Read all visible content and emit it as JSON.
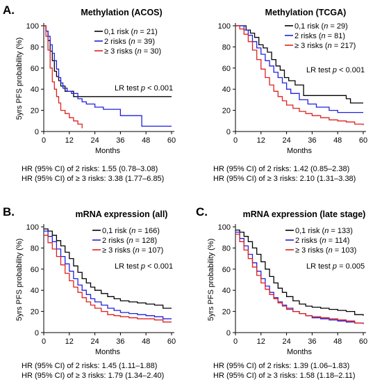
{
  "colors": {
    "low": "#000000",
    "mid": "#1f1fe0",
    "high": "#e01f1f",
    "axis": "#000000"
  },
  "chart_data": [
    {
      "type": "line",
      "panel": "A.",
      "title": "Methylation (ACOS)",
      "xlabel": "Months",
      "ylabel": "5yrs PFS probability (%)",
      "xlim": [
        0,
        60
      ],
      "ylim": [
        0,
        100
      ],
      "xticks": [
        0,
        12,
        24,
        36,
        48,
        60
      ],
      "yticks": [
        0,
        20,
        40,
        60,
        80,
        100
      ],
      "legend_position": "top-right",
      "legend": [
        {
          "label": "0,1 risk",
          "n": "21"
        },
        {
          "label": "2  risks",
          "n": "39"
        },
        {
          "label": "≥ 3 risks",
          "n": "30"
        }
      ],
      "lr_label": "LR test",
      "lr_p": "< 0.001",
      "hr_lines": [
        {
          "prefix": "HR (95% CI) of",
          "group": "2  risks",
          "value": "1.55 (0.78–3.08)"
        },
        {
          "prefix": "HR (95% CI) of",
          "group": "≥ 3 risks",
          "value": "3.38 (1.77–6.85)"
        }
      ],
      "series": [
        {
          "x": [
            0,
            1,
            2,
            3,
            4,
            5,
            6,
            7,
            8,
            10,
            12,
            14,
            16,
            60
          ],
          "y": [
            100,
            95,
            86,
            76,
            67,
            57,
            52,
            48,
            43,
            38,
            38,
            33,
            33,
            33
          ]
        },
        {
          "x": [
            0,
            1,
            2,
            3,
            4,
            5,
            6,
            7,
            8,
            9,
            11,
            13,
            16,
            18,
            20,
            24,
            28,
            36,
            44,
            46,
            60
          ],
          "y": [
            100,
            95,
            90,
            82,
            74,
            67,
            59,
            51,
            46,
            41,
            38,
            36,
            31,
            28,
            26,
            23,
            21,
            15,
            15,
            5,
            5
          ]
        },
        {
          "x": [
            0,
            1,
            2,
            3,
            4,
            5,
            6,
            7,
            8,
            10,
            12,
            14,
            16,
            18
          ],
          "y": [
            100,
            90,
            77,
            60,
            47,
            40,
            33,
            27,
            20,
            17,
            13,
            10,
            7,
            3
          ]
        }
      ]
    },
    {
      "type": "line",
      "panel": "",
      "title": "Methylation (TCGA)",
      "xlabel": "Months",
      "ylabel": "",
      "xlim": [
        0,
        60
      ],
      "ylim": [
        0,
        100
      ],
      "xticks": [
        0,
        12,
        24,
        36,
        48,
        60
      ],
      "yticks": [
        0,
        20,
        40,
        60,
        80,
        100
      ],
      "legend_position": "top-right",
      "legend": [
        {
          "label": "0,1 risk",
          "n": "29"
        },
        {
          "label": "2  risks",
          "n": "81"
        },
        {
          "label": "≥ 3 risks",
          "n": "217"
        }
      ],
      "lr_label": "LR test",
      "lr_p": "< 0.001",
      "hr_lines": [
        {
          "prefix": "HR (95% CI) of",
          "group": "2  risks",
          "value": "1.42 (0.85–2.38)"
        },
        {
          "prefix": "HR (95% CI) of",
          "group": "≥ 3 risks",
          "value": "2.10 (1.31–3.38)"
        }
      ],
      "series": [
        {
          "x": [
            0,
            5,
            7,
            9,
            11,
            13,
            15,
            17,
            19,
            21,
            23,
            25,
            28,
            32,
            40,
            52,
            54,
            60
          ],
          "y": [
            100,
            96,
            93,
            89,
            82,
            79,
            75,
            68,
            62,
            58,
            51,
            48,
            44,
            34,
            34,
            31,
            27,
            27
          ]
        },
        {
          "x": [
            0,
            4,
            6,
            8,
            10,
            12,
            14,
            16,
            18,
            20,
            22,
            24,
            26,
            30,
            34,
            38,
            44,
            48,
            60
          ],
          "y": [
            100,
            96,
            91,
            85,
            79,
            73,
            67,
            62,
            56,
            51,
            46,
            40,
            36,
            30,
            26,
            23,
            20,
            18,
            18
          ]
        },
        {
          "x": [
            0,
            2,
            4,
            6,
            8,
            10,
            12,
            14,
            16,
            18,
            20,
            22,
            24,
            27,
            30,
            33,
            36,
            40,
            44,
            48,
            52,
            56,
            60
          ],
          "y": [
            100,
            97,
            92,
            85,
            77,
            68,
            59,
            51,
            44,
            38,
            33,
            29,
            25,
            22,
            19,
            17,
            15,
            13,
            11,
            10,
            9,
            7,
            6
          ]
        }
      ]
    },
    {
      "type": "line",
      "panel": "B.",
      "title": "mRNA expression (all)",
      "xlabel": "Months",
      "ylabel": "5yrs PFS probability (%)",
      "xlim": [
        0,
        60
      ],
      "ylim": [
        0,
        100
      ],
      "xticks": [
        0,
        12,
        24,
        36,
        48,
        60
      ],
      "yticks": [
        0,
        20,
        40,
        60,
        80,
        100
      ],
      "legend_position": "top-right",
      "legend": [
        {
          "label": "0,1 risk",
          "n": "166"
        },
        {
          "label": "2  risks",
          "n": "128"
        },
        {
          "label": "≥ 3 risks",
          "n": "107"
        }
      ],
      "lr_label": "LR test",
      "lr_p": "< 0.001",
      "hr_lines": [
        {
          "prefix": "HR (95% CI) of",
          "group": "2  risks",
          "value": "1.45 (1.11–1.88)"
        },
        {
          "prefix": "HR (95% CI) of",
          "group": "≥ 3 risks",
          "value": "1.79 (1.34–2.40)"
        }
      ],
      "series": [
        {
          "x": [
            0,
            2,
            4,
            6,
            8,
            10,
            12,
            14,
            16,
            18,
            20,
            22,
            24,
            27,
            30,
            33,
            36,
            40,
            44,
            48,
            52,
            56,
            60
          ],
          "y": [
            98,
            96,
            92,
            87,
            82,
            76,
            70,
            63,
            57,
            51,
            47,
            43,
            40,
            37,
            34,
            32,
            30,
            29,
            28,
            27,
            26,
            23,
            23
          ]
        },
        {
          "x": [
            0,
            2,
            4,
            6,
            8,
            10,
            12,
            14,
            16,
            18,
            20,
            22,
            24,
            27,
            30,
            33,
            36,
            40,
            44,
            48,
            52,
            56,
            60
          ],
          "y": [
            96,
            91,
            86,
            79,
            72,
            65,
            58,
            51,
            45,
            40,
            36,
            32,
            29,
            26,
            23,
            21,
            19,
            18,
            17,
            16,
            15,
            13,
            13
          ]
        },
        {
          "x": [
            0,
            2,
            4,
            6,
            8,
            10,
            12,
            14,
            16,
            18,
            20,
            22,
            24,
            27,
            30,
            33,
            36,
            40,
            44,
            48,
            52,
            56,
            60
          ],
          "y": [
            92,
            85,
            79,
            72,
            64,
            56,
            49,
            43,
            38,
            33,
            29,
            26,
            23,
            20,
            17,
            16,
            15,
            14,
            13,
            13,
            12,
            10,
            10
          ]
        }
      ]
    },
    {
      "type": "line",
      "panel": "C.",
      "title": "mRNA expression (late stage)",
      "xlabel": "Months",
      "ylabel": "5yrs PFS probability (%)",
      "xlim": [
        0,
        60
      ],
      "ylim": [
        0,
        100
      ],
      "xticks": [
        0,
        12,
        24,
        36,
        48,
        60
      ],
      "yticks": [
        0,
        20,
        40,
        60,
        80,
        100
      ],
      "legend_position": "top-right",
      "legend": [
        {
          "label": "0,1 risk",
          "n": "133"
        },
        {
          "label": "2  risks",
          "n": "114"
        },
        {
          "label": "≥ 3 risks",
          "n": "103"
        }
      ],
      "lr_label": "LR test",
      "lr_p": "= 0.005",
      "hr_lines": [
        {
          "prefix": "HR (95% CI) of",
          "group": "2  risks",
          "value": "1.39 (1.06–1.83)"
        },
        {
          "prefix": "HR (95% CI) of",
          "group": "≥ 3 risks",
          "value": "1.58 (1.18–2.11)"
        }
      ],
      "series": [
        {
          "x": [
            0,
            2,
            4,
            6,
            8,
            10,
            12,
            14,
            16,
            18,
            20,
            22,
            24,
            27,
            30,
            33,
            36,
            40,
            44,
            48,
            52,
            56,
            60
          ],
          "y": [
            97,
            95,
            91,
            86,
            80,
            74,
            67,
            60,
            53,
            47,
            42,
            38,
            34,
            30,
            27,
            25,
            24,
            23,
            22,
            21,
            20,
            17,
            16
          ]
        },
        {
          "x": [
            0,
            2,
            4,
            6,
            8,
            10,
            12,
            14,
            16,
            18,
            20,
            22,
            24,
            27,
            30,
            33,
            36,
            40,
            44,
            48,
            52,
            56,
            60
          ],
          "y": [
            95,
            89,
            82,
            74,
            66,
            58,
            51,
            44,
            38,
            33,
            29,
            26,
            23,
            20,
            18,
            16,
            14,
            13,
            12,
            11,
            10,
            9,
            8
          ]
        },
        {
          "x": [
            0,
            2,
            4,
            6,
            8,
            10,
            12,
            14,
            16,
            18,
            20,
            22,
            24,
            27,
            30,
            33,
            36,
            40,
            44,
            48,
            52,
            56,
            60
          ],
          "y": [
            93,
            86,
            78,
            70,
            62,
            54,
            47,
            41,
            36,
            32,
            28,
            25,
            22,
            20,
            18,
            16,
            15,
            14,
            13,
            12,
            11,
            9,
            9
          ]
        }
      ]
    }
  ]
}
